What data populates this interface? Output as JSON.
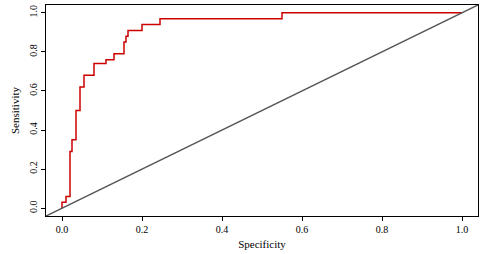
{
  "chart_data": {
    "type": "line",
    "x_label": "Specificity",
    "y_label": "Sensitivity",
    "xlim": [
      -0.04,
      1.04
    ],
    "ylim": [
      -0.04,
      1.04
    ],
    "xticks": [
      {
        "value": 0,
        "label": "0.0"
      },
      0.2,
      0.4,
      0.6,
      0.8,
      {
        "value": 1,
        "label": "1.0"
      }
    ],
    "yticks": [
      {
        "value": 0,
        "label": "0.0"
      },
      0.2,
      0.4,
      0.6,
      0.8,
      {
        "value": 1,
        "label": "1.0"
      }
    ],
    "grid": false,
    "series": [
      {
        "color": "#cc0000",
        "line_style": "solid",
        "x": [
          0,
          0,
          0.01,
          0.01,
          0.02,
          0.02,
          0.025,
          0.025,
          0.035,
          0.035,
          0.045,
          0.045,
          0.055,
          0.055,
          0.08,
          0.08,
          0.11,
          0.11,
          0.13,
          0.13,
          0.155,
          0.155,
          0.16,
          0.16,
          0.165,
          0.165,
          0.2,
          0.2,
          0.245,
          0.245,
          0.55,
          0.55,
          1
        ],
        "values": [
          0,
          0.03,
          0.03,
          0.06,
          0.06,
          0.29,
          0.29,
          0.35,
          0.35,
          0.5,
          0.5,
          0.62,
          0.62,
          0.68,
          0.68,
          0.74,
          0.74,
          0.76,
          0.76,
          0.79,
          0.79,
          0.85,
          0.85,
          0.88,
          0.88,
          0.91,
          0.91,
          0.94,
          0.94,
          0.97,
          0.97,
          1,
          1
        ]
      },
      {
        "color": "#555555",
        "line_style": "solid",
        "x": [
          -0.04,
          1.04
        ],
        "values": [
          -0.04,
          1.04
        ]
      }
    ]
  }
}
